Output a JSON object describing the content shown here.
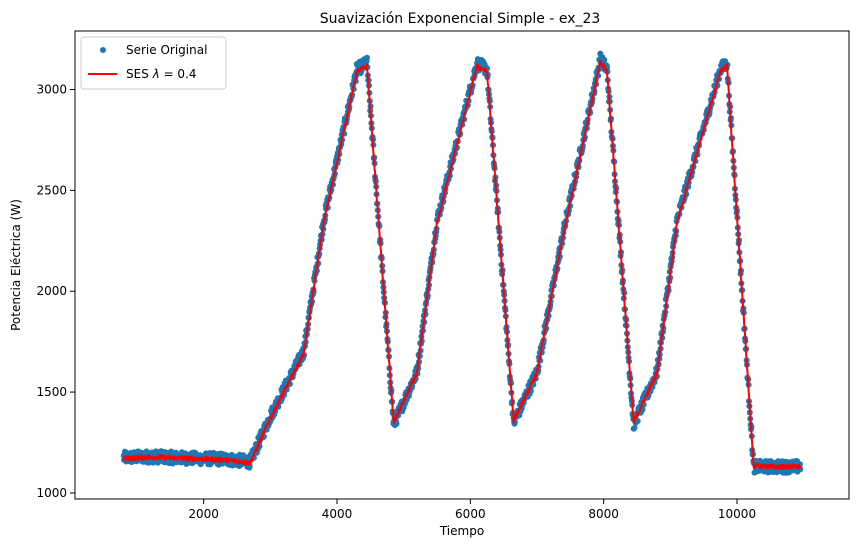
{
  "chart_data": {
    "type": "line",
    "title": "Suavización Exponencial Simple - ex_23",
    "xlabel": "Tiempo",
    "ylabel": "Potencia Eléctrica (W)",
    "xlim": [
      70,
      11680
    ],
    "ylim": [
      970,
      3290
    ],
    "x_ticks": [
      2000,
      4000,
      6000,
      8000,
      10000
    ],
    "y_ticks": [
      1000,
      1500,
      2000,
      2500,
      3000
    ],
    "legend_position": "top-left",
    "series": [
      {
        "name": "Serie Original",
        "style": "scatter",
        "color": "#1f77b4",
        "noise_band": 30,
        "x": [
          800,
          1200,
          1800,
          2300,
          2700,
          3000,
          3500,
          3800,
          4300,
          4450,
          4850,
          5200,
          5500,
          6100,
          6250,
          6650,
          7000,
          7400,
          7950,
          8050,
          8450,
          8800,
          9100,
          9750,
          9850,
          10250,
          10500,
          10950
        ],
        "y": [
          1175,
          1180,
          1172,
          1168,
          1155,
          1380,
          1700,
          2350,
          3100,
          3130,
          1340,
          1600,
          2350,
          3130,
          3100,
          1350,
          1600,
          2300,
          3150,
          3100,
          1340,
          1600,
          2350,
          3100,
          3130,
          1130,
          1130,
          1130
        ]
      },
      {
        "name": "SES λ = 0.4",
        "label_prefix": "SES ",
        "label_symbol": "λ",
        "label_suffix": " = 0.4",
        "style": "line",
        "color": "#ff0000",
        "noise_band": 12,
        "x": [
          800,
          1200,
          1800,
          2300,
          2700,
          3000,
          3500,
          3800,
          4300,
          4450,
          4850,
          5200,
          5500,
          6100,
          6250,
          6650,
          7000,
          7400,
          7950,
          8050,
          8450,
          8800,
          9100,
          9750,
          9850,
          10250,
          10500,
          10950
        ],
        "y": [
          1170,
          1178,
          1170,
          1165,
          1150,
          1370,
          1690,
          2340,
          3090,
          3115,
          1350,
          1595,
          2340,
          3115,
          3090,
          1360,
          1595,
          2290,
          3135,
          3090,
          1350,
          1595,
          2340,
          3090,
          3115,
          1135,
          1130,
          1130
        ]
      }
    ]
  }
}
